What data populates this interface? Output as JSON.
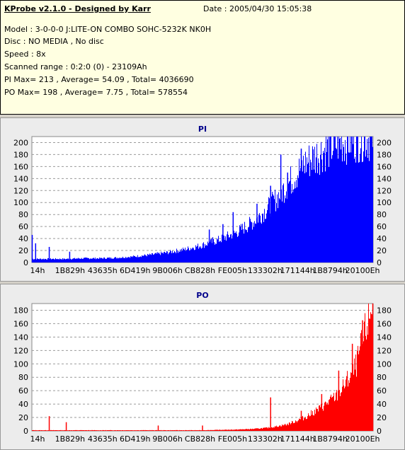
{
  "header": {
    "title": "KProbe v2.1.0 - Designed by Karr",
    "date": "Date : 2005/04/30 15:05:38",
    "lines": [
      "Model : 3-0-0-0 J:LITE-ON COMBO SOHC-5232K NK0H",
      "Disc : NO MEDIA , No disc",
      "Speed : 8x",
      "Scanned range : 0:2:0 (0) - 23109Ah",
      "PI Max= 213 , Average= 54.09 , Total= 4036690",
      "PO Max= 198 , Average= 7.75 , Total= 578554"
    ]
  },
  "chart_data": [
    {
      "type": "area",
      "title": "PI",
      "color": "#0000ff",
      "x_tick_labels": [
        "14h",
        "1B829h",
        "43635h",
        "6D419h",
        "9B006h",
        "CB828h",
        "FE005h",
        "133302h",
        "171144h",
        "1B8794h",
        "20100Eh"
      ],
      "ylim": [
        0,
        210
      ],
      "y_ticks": [
        0,
        20,
        40,
        60,
        80,
        100,
        120,
        140,
        160,
        180,
        200
      ],
      "grid": true,
      "profile_x_fraction": [
        0.0,
        0.05,
        0.1,
        0.15,
        0.2,
        0.25,
        0.3,
        0.35,
        0.4,
        0.45,
        0.5,
        0.55,
        0.6,
        0.65,
        0.7,
        0.75,
        0.8,
        0.85,
        0.9,
        0.95,
        1.0
      ],
      "profile_values": [
        6,
        6,
        6,
        7,
        7,
        8,
        10,
        13,
        17,
        22,
        29,
        38,
        50,
        68,
        95,
        130,
        165,
        185,
        200,
        207,
        209
      ],
      "spikes": [
        [
          0.0,
          46
        ],
        [
          0.01,
          32
        ],
        [
          0.05,
          26
        ],
        [
          0.11,
          18
        ],
        [
          0.52,
          55
        ],
        [
          0.53,
          42
        ],
        [
          0.56,
          64
        ],
        [
          0.59,
          84
        ],
        [
          0.66,
          98
        ],
        [
          0.7,
          128
        ],
        [
          0.73,
          180
        ],
        [
          0.75,
          150
        ],
        [
          0.79,
          190
        ]
      ]
    },
    {
      "type": "area",
      "title": "PO",
      "color": "#ff0000",
      "x_tick_labels": [
        "14h",
        "1B829h",
        "43635h",
        "6D419h",
        "9B006h",
        "CB828h",
        "FE005h",
        "133302h",
        "171144h",
        "1B8794h",
        "20100Eh"
      ],
      "ylim": [
        0,
        190
      ],
      "y_ticks": [
        0,
        20,
        40,
        60,
        80,
        100,
        120,
        140,
        160,
        180
      ],
      "grid": true,
      "profile_x_fraction": [
        0.0,
        0.1,
        0.2,
        0.3,
        0.4,
        0.5,
        0.6,
        0.65,
        0.7,
        0.75,
        0.8,
        0.85,
        0.9,
        0.95,
        1.0
      ],
      "profile_values": [
        1,
        1,
        1,
        1,
        1,
        1,
        2,
        3,
        5,
        10,
        20,
        35,
        55,
        95,
        190
      ],
      "spikes": [
        [
          0.05,
          22
        ],
        [
          0.1,
          13
        ],
        [
          0.37,
          8
        ],
        [
          0.5,
          8
        ],
        [
          0.7,
          50
        ],
        [
          0.79,
          30
        ],
        [
          0.85,
          55
        ],
        [
          0.9,
          90
        ],
        [
          0.94,
          130
        ],
        [
          0.97,
          165
        ],
        [
          1.0,
          198
        ]
      ]
    }
  ]
}
